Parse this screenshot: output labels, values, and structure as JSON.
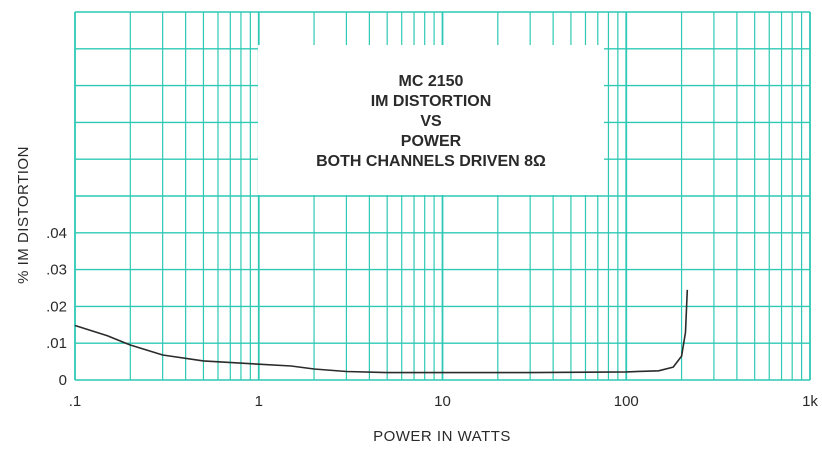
{
  "chart_data": {
    "type": "line",
    "title_lines": [
      "MC 2150",
      "IM DISTORTION",
      "VS",
      "POWER",
      "BOTH CHANNELS DRIVEN 8Ω"
    ],
    "xlabel": "POWER IN WATTS",
    "ylabel": "% IM DISTORTION",
    "x_scale": "log",
    "xlim": [
      0.1,
      1000
    ],
    "ylim": [
      0,
      0.1
    ],
    "x_ticks": [
      {
        "value": 0.1,
        "label": ".1"
      },
      {
        "value": 1,
        "label": "1"
      },
      {
        "value": 10,
        "label": "10"
      },
      {
        "value": 100,
        "label": "100"
      },
      {
        "value": 1000,
        "label": "1k"
      }
    ],
    "y_ticks": [
      {
        "value": 0,
        "label": "0"
      },
      {
        "value": 0.01,
        "label": ".01"
      },
      {
        "value": 0.02,
        "label": ".02"
      },
      {
        "value": 0.03,
        "label": ".03"
      },
      {
        "value": 0.04,
        "label": ".04"
      }
    ],
    "grid": true,
    "series": [
      {
        "x": [
          0.1,
          0.15,
          0.2,
          0.3,
          0.5,
          1.0,
          1.5,
          2.0,
          3.0,
          5.0,
          10,
          30,
          100,
          150,
          180,
          200,
          210,
          215
        ],
        "y": [
          0.0148,
          0.012,
          0.0095,
          0.0068,
          0.0052,
          0.0043,
          0.0038,
          0.003,
          0.0023,
          0.002,
          0.002,
          0.002,
          0.0022,
          0.0025,
          0.0035,
          0.0065,
          0.013,
          0.0245
        ]
      }
    ],
    "colors": {
      "grid": "#2ec9b4",
      "line": "#2b2b2b",
      "title_box": "#ffffff"
    }
  }
}
